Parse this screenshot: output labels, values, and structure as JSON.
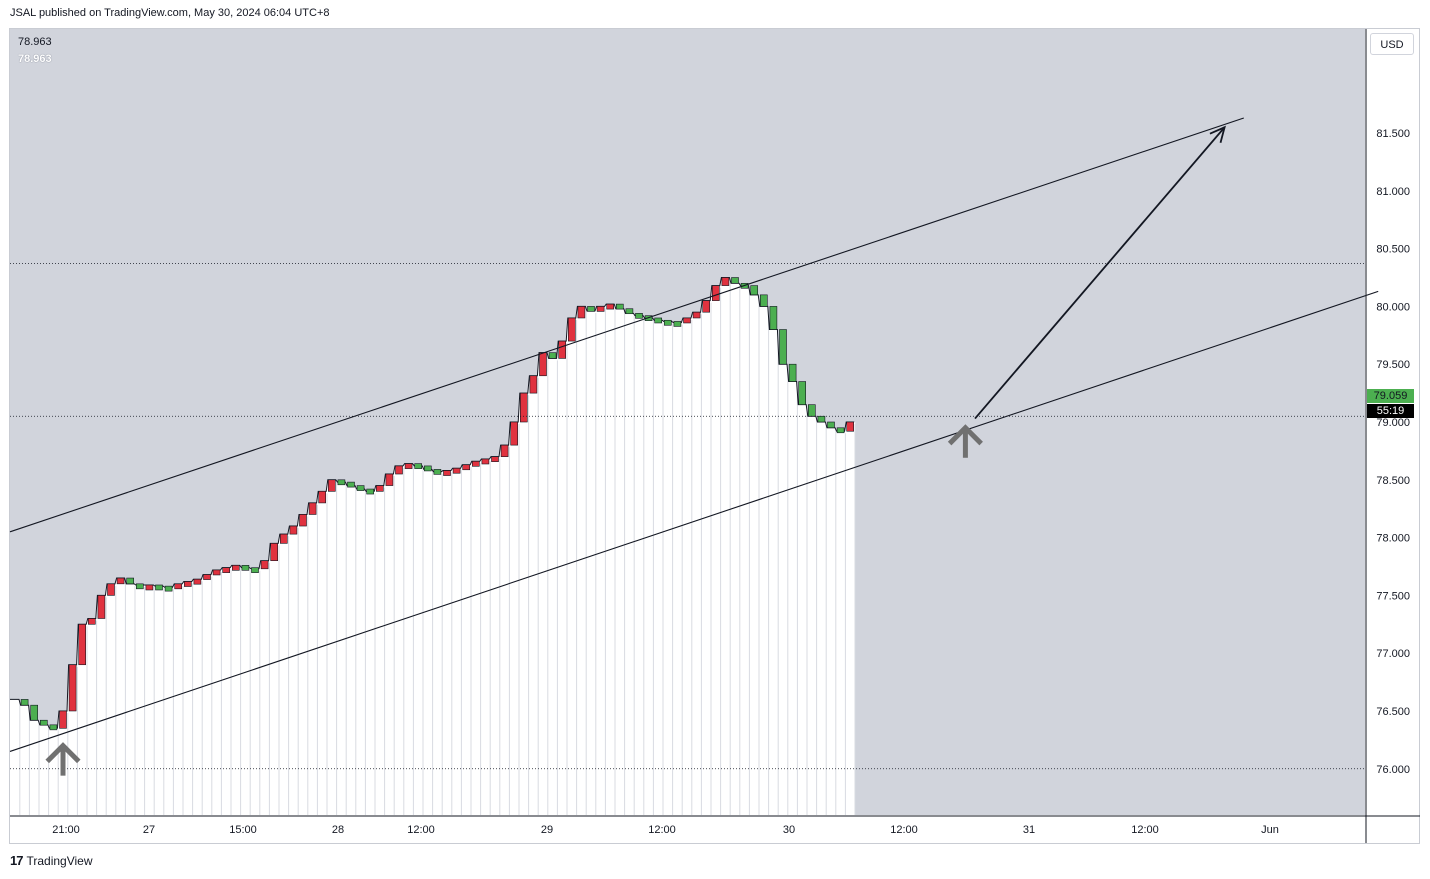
{
  "header": {
    "published": "JSAL published on TradingView.com, May 30, 2024 06:04 UTC+8"
  },
  "footer": {
    "brand": "TradingView"
  },
  "currency": "USD",
  "ohlc": {
    "line1": "78.963",
    "line2": "78.963"
  },
  "price_tags": {
    "current": "79.059",
    "countdown": "55:19"
  },
  "colors": {
    "up": "#4caf50",
    "down": "#e0323f",
    "bg": "#d1d4dc"
  },
  "chart_data": {
    "type": "line",
    "ylim": [
      75.6,
      82.4
    ],
    "y_ticks": [
      "81.500",
      "81.000",
      "80.500",
      "80.000",
      "79.500",
      "79.000",
      "78.500",
      "78.000",
      "77.500",
      "77.000",
      "76.500",
      "76.000"
    ],
    "x_ticks": [
      "21:00",
      "27",
      "15:00",
      "28",
      "12:00",
      "29",
      "12:00",
      "30",
      "12:00",
      "31",
      "12:00",
      "Jun"
    ],
    "dotted_levels": [
      80.37,
      79.05,
      76.0
    ],
    "series": [
      {
        "values": [
          76.6,
          76.55,
          76.42,
          76.38,
          76.35,
          76.5,
          76.9,
          77.25,
          77.3,
          77.5,
          77.6,
          77.65,
          77.6,
          77.59,
          77.59,
          77.58,
          77.57,
          77.6,
          77.62,
          77.64,
          77.68,
          77.72,
          77.74,
          77.76,
          77.74,
          77.73,
          77.8,
          77.95,
          78.03,
          78.1,
          78.2,
          78.3,
          78.4,
          78.5,
          78.48,
          78.45,
          78.42,
          78.4,
          78.45,
          78.55,
          78.62,
          78.64,
          78.62,
          78.59,
          78.57,
          78.58,
          78.6,
          78.63,
          78.66,
          78.68,
          78.7,
          78.8,
          79.0,
          79.25,
          79.4,
          79.6,
          79.55,
          79.7,
          79.9,
          80.0,
          79.96,
          80.0,
          80.02,
          79.98,
          79.94,
          79.92,
          79.9,
          79.88,
          79.87,
          79.86,
          79.9,
          79.95,
          80.05,
          80.18,
          80.25,
          80.2,
          80.18,
          80.1,
          80.0,
          79.8,
          79.5,
          79.35,
          79.15,
          79.05,
          79.0,
          78.95,
          78.92,
          79.0
        ]
      }
    ],
    "annotations": [
      {
        "type": "channel_line",
        "from": [
          0,
          78.05
        ],
        "to": [
          128,
          81.63
        ]
      },
      {
        "type": "channel_line",
        "from": [
          0,
          76.15
        ],
        "to": [
          142,
          80.13
        ]
      },
      {
        "type": "arrow",
        "from": [
          100,
          79.03
        ],
        "to": [
          126,
          81.55
        ]
      },
      {
        "type": "up_arrow_marker",
        "at": [
          5,
          76.2
        ]
      },
      {
        "type": "up_arrow_marker",
        "at": [
          99,
          78.95
        ]
      }
    ]
  }
}
